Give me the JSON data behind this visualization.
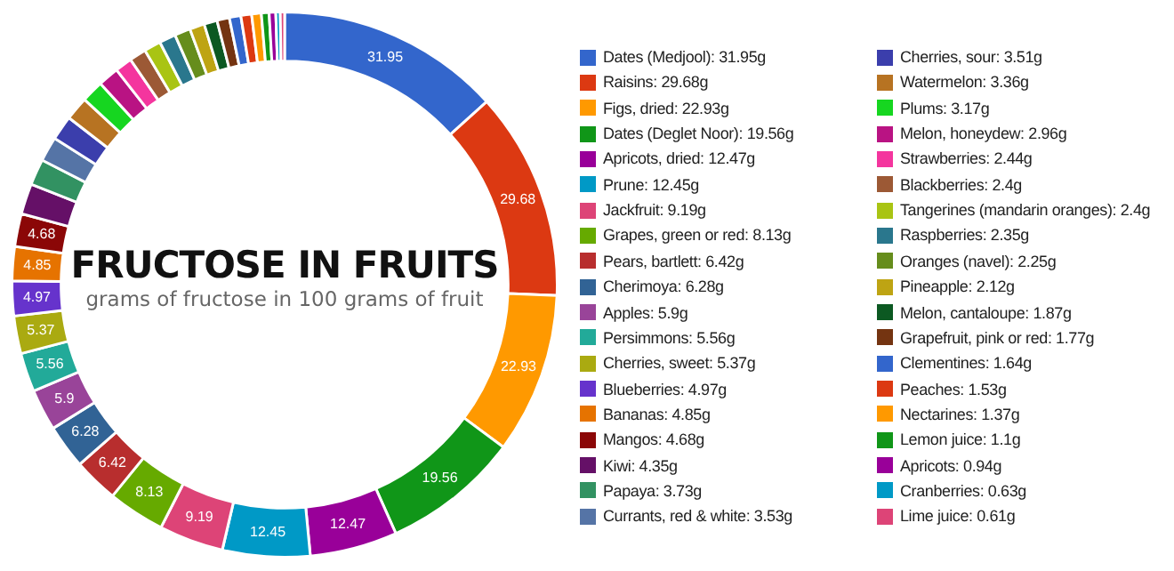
{
  "chart_data": {
    "type": "donut",
    "title": "FRUCTOSE IN FRUITS",
    "subtitle": "grams of fructose in 100 grams of fruit",
    "legend": "right",
    "categories": [
      "Dates (Medjool): 31.95g",
      "Raisins: 29.68g",
      "Figs, dried: 22.93g",
      "Dates (Deglet Noor): 19.56g",
      "Apricots, dried: 12.47g",
      "Prune: 12.45g",
      "Jackfruit: 9.19g",
      "Grapes, green or red: 8.13g",
      "Pears, bartlett: 6.42g",
      "Cherimoya: 6.28g",
      "Apples: 5.9g",
      "Persimmons: 5.56g",
      "Cherries, sweet: 5.37g",
      "Blueberries: 4.97g",
      "Bananas: 4.85g",
      "Mangos: 4.68g",
      "Kiwi: 4.35g",
      "Papaya: 3.73g",
      "Currants, red & white: 3.53g",
      "Cherries, sour: 3.51g",
      "Watermelon: 3.36g",
      "Plums: 3.17g",
      "Melon, honeydew: 2.96g",
      "Strawberries: 2.44g",
      "Blackberries: 2.4g",
      "Tangerines (mandarin oranges): 2.4g",
      "Raspberries: 2.35g",
      "Oranges (navel): 2.25g",
      "Pineapple: 2.12g",
      "Melon, cantaloupe: 1.87g",
      "Grapefruit, pink or red: 1.77g",
      "Clementines: 1.64g",
      "Peaches: 1.53g",
      "Nectarines: 1.37g",
      "Lemon juice: 1.1g",
      "Apricots: 0.94g",
      "Cranberries: 0.63g",
      "Lime juice: 0.61g"
    ],
    "values": [
      31.95,
      29.68,
      22.93,
      19.56,
      12.47,
      12.45,
      9.19,
      8.13,
      6.42,
      6.28,
      5.9,
      5.56,
      5.37,
      4.97,
      4.85,
      4.68,
      4.35,
      3.73,
      3.53,
      3.51,
      3.36,
      3.17,
      2.96,
      2.44,
      2.4,
      2.4,
      2.35,
      2.25,
      2.12,
      1.87,
      1.77,
      1.64,
      1.53,
      1.37,
      1.1,
      0.94,
      0.63,
      0.61
    ],
    "value_labels": [
      "31.95",
      "29.68",
      "22.93",
      "19.56",
      "12.47",
      "12.45",
      "9.19",
      "8.13",
      "6.42",
      "6.28",
      "5.9",
      "5.56",
      "5.37",
      "4.97",
      "4.85",
      "4.68",
      null,
      null,
      null,
      null,
      null,
      null,
      null,
      null,
      null,
      null,
      null,
      null,
      null,
      null,
      null,
      null,
      null,
      null,
      null,
      null,
      null,
      null
    ],
    "colors": [
      "#3366cc",
      "#dc3912",
      "#ff9900",
      "#109618",
      "#990099",
      "#0099c6",
      "#dd4477",
      "#66aa00",
      "#b82e2e",
      "#316395",
      "#994499",
      "#22aa99",
      "#aaaa11",
      "#6633cc",
      "#e67300",
      "#8b0707",
      "#651067",
      "#329262",
      "#5574a6",
      "#3b3eac",
      "#b77322",
      "#16d620",
      "#b91383",
      "#f4359e",
      "#9c5935",
      "#a9c413",
      "#2a778d",
      "#668d1c",
      "#bea413",
      "#0c5922",
      "#743411",
      "#3366cc",
      "#dc3912",
      "#ff9900",
      "#109618",
      "#990099",
      "#0099c6",
      "#dd4477"
    ]
  }
}
